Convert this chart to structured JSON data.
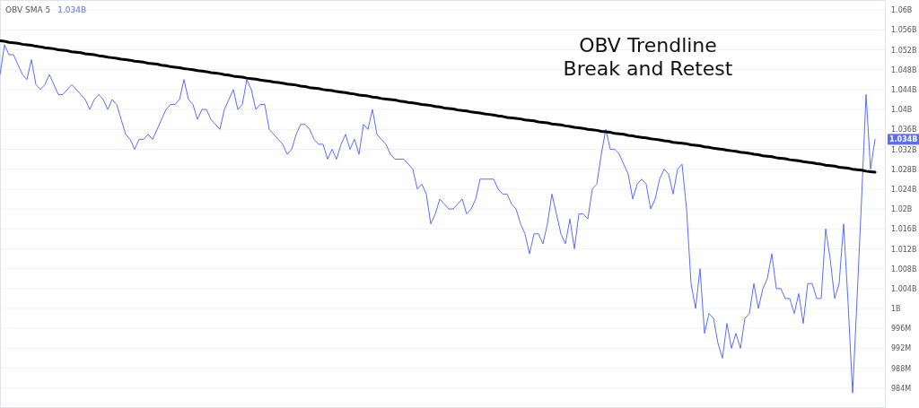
{
  "chart_data": {
    "type": "line",
    "title": "OBV Trendline Break and Retest",
    "categories": [
      null,
      null,
      null,
      null,
      null,
      null,
      null,
      null,
      null,
      null,
      null,
      null,
      null,
      null,
      null,
      null,
      null,
      null,
      null,
      null,
      null,
      null,
      null,
      null,
      null,
      null,
      null,
      null,
      null,
      null,
      null,
      null,
      null,
      null,
      null,
      null,
      null,
      null,
      null,
      null,
      null,
      null,
      null,
      null,
      null,
      null,
      null,
      null,
      null,
      null,
      null,
      null,
      null,
      null,
      null,
      null,
      null,
      null,
      null,
      null,
      null,
      null,
      null,
      null,
      null,
      null,
      null,
      null,
      null,
      null,
      null,
      null,
      null,
      null,
      null,
      null,
      null,
      null,
      null,
      null,
      null,
      null,
      null,
      null,
      null,
      null,
      null,
      null,
      null,
      null,
      null,
      null,
      null,
      null,
      null,
      null,
      null,
      null,
      null,
      null,
      null,
      null,
      null,
      null,
      null,
      null,
      null,
      null,
      null,
      null,
      null,
      null,
      null,
      null,
      null,
      null,
      null,
      null,
      null,
      null,
      null,
      null,
      null,
      null,
      null,
      null,
      null,
      null,
      null,
      null,
      null,
      null,
      null,
      null,
      null,
      null,
      null,
      null,
      null,
      null,
      null,
      null,
      null,
      null,
      null,
      null,
      null,
      null,
      null,
      null,
      null,
      null,
      null,
      null,
      null,
      null,
      null,
      null,
      null,
      null,
      null,
      null,
      null,
      null,
      null,
      null,
      null,
      null,
      null,
      null,
      null,
      null,
      null,
      null,
      null,
      null,
      null,
      null,
      null,
      null,
      null,
      null,
      null,
      null,
      null,
      null,
      null,
      null,
      null,
      null,
      null,
      null,
      null,
      null,
      null,
      null
    ],
    "series": [
      {
        "name": "OBV SMA 5",
        "color": "#5a6ef5",
        "values": [
          1047000000.0,
          1053000000.0,
          1051000000.0,
          1051000000.0,
          1049000000.0,
          1047000000.0,
          1046000000.0,
          1050000000.0,
          1045000000.0,
          1044000000.0,
          1045000000.0,
          1047000000.0,
          1045000000.0,
          1043000000.0,
          1043000000.0,
          1044000000.0,
          1045000000.0,
          1044000000.0,
          1043000000.0,
          1042000000.0,
          1040000000.0,
          1042000000.0,
          1043000000.0,
          1042000000.0,
          1040000000.0,
          1042000000.0,
          1041000000.0,
          1038000000.0,
          1035000000.0,
          1034000000.0,
          1032000000.0,
          1034000000.0,
          1034000000.0,
          1035000000.0,
          1034000000.0,
          1036000000.0,
          1038000000.0,
          1040000000.0,
          1041000000.0,
          1041000000.0,
          1042000000.0,
          1046000000.0,
          1042000000.0,
          1041000000.0,
          1038000000.0,
          1040000000.0,
          1040000000.0,
          1038000000.0,
          1037000000.0,
          1036000000.0,
          1040000000.0,
          1042000000.0,
          1044000000.0,
          1040000000.0,
          1041000000.0,
          1046000000.0,
          1044000000.0,
          1040000000.0,
          1041000000.0,
          1041000000.0,
          1036000000.0,
          1035000000.0,
          1034000000.0,
          1033000000.0,
          1031000000.0,
          1032000000.0,
          1035000000.0,
          1037000000.0,
          1037000000.0,
          1036000000.0,
          1034000000.0,
          1033000000.0,
          1033000000.0,
          1030000000.0,
          1032000000.0,
          1030000000.0,
          1033000000.0,
          1035000000.0,
          1032000000.0,
          1034000000.0,
          1031000000.0,
          1037000000.0,
          1036000000.0,
          1040000000.0,
          1035000000.0,
          1034000000.0,
          1033000000.0,
          1031000000.0,
          1030000000.0,
          1030000000.0,
          1030000000.0,
          1029000000.0,
          1028000000.0,
          1024000000.0,
          1025000000.0,
          1023000000.0,
          1017000000.0,
          1019000000.0,
          1022000000.0,
          1021000000.0,
          1020000000.0,
          1020000000.0,
          1021000000.0,
          1022000000.0,
          1019000000.0,
          1020000000.0,
          1022000000.0,
          1026000000.0,
          1026000000.0,
          1026000000.0,
          1026000000.0,
          1024000000.0,
          1023000000.0,
          1023000000.0,
          1021000000.0,
          1020000000.0,
          1017000000.0,
          1015000000.0,
          1011000000.0,
          1015000000.0,
          1015000000.0,
          1013000000.0,
          1017000000.0,
          1023000000.0,
          1019000000.0,
          1015000000.0,
          1013000000.0,
          1018000000.0,
          1012000000.0,
          1019000000.0,
          1019000000.0,
          1018000000.0,
          1024000000.0,
          1025000000.0,
          1031000000.0,
          1036000000.0,
          1032000000.0,
          1032000000.0,
          1031000000.0,
          1029000000.0,
          1027000000.0,
          1022000000.0,
          1025000000.0,
          1026000000.0,
          1025000000.0,
          1020000000.0,
          1022000000.0,
          1026000000.0,
          1028000000.0,
          1027000000.0,
          1023000000.0,
          1028000000.0,
          1029000000.0,
          1020000000.0,
          1005000000.0,
          1000000000.0,
          1008000000.0,
          995000000.0,
          999000000.0,
          998000000.0,
          993000000.0,
          990000000.0,
          997000000.0,
          992000000.0,
          995000000.0,
          992000000.0,
          998000000.0,
          999000000.0,
          1005000000.0,
          1000000000.0,
          1004000000.0,
          1006000000.0,
          1011000000.0,
          1004000000.0,
          1004000000.0,
          1002000000.0,
          1002000000.0,
          999000000.0,
          1003000000.0,
          997000000.0,
          1005000000.0,
          1005000000.0,
          1002000000.0,
          1002000000.0,
          1016000000.0,
          1010000000.0,
          1002000000.0,
          1005000000.0,
          1017000000.0,
          1001000000.0,
          983000000.0,
          1002000000.0,
          1022000000.0,
          1043000000.0,
          1028000000.0,
          1034000000.0
        ]
      },
      {
        "color": "#000000",
        "values": [
          1053800000.0,
          1053700000.0,
          1053500000.0,
          1053400000.0,
          1053300000.0,
          1053100000.0,
          1053000000.0,
          1052900000.0,
          1052700000.0,
          1052600000.0,
          1052400000.0,
          1052300000.0,
          1052200000.0,
          1052000000.0,
          1051900000.0,
          1051800000.0,
          1051600000.0,
          1051500000.0,
          1051400000.0,
          1051200000.0,
          1051100000.0,
          1051000000.0,
          1050800000.0,
          1050700000.0,
          1050500000.0,
          1050400000.0,
          1050300000.0,
          1050100000.0,
          1050000000.0,
          1049900000.0,
          1049700000.0,
          1049600000.0,
          1049500000.0,
          1049300000.0,
          1049200000.0,
          1049100000.0,
          1048900000.0,
          1048800000.0,
          1048600000.0,
          1048500000.0,
          1048400000.0,
          1048200000.0,
          1048100000.0,
          1048000000.0,
          1047800000.0,
          1047700000.0,
          1047600000.0,
          1047400000.0,
          1047300000.0,
          1047200000.0,
          1047000000.0,
          1046900000.0,
          1046700000.0,
          1046600000.0,
          1046500000.0,
          1046300000.0,
          1046200000.0,
          1046100000.0,
          1045900000.0,
          1045800000.0,
          1045700000.0,
          1045500000.0,
          1045400000.0,
          1045300000.0,
          1045100000.0,
          1045000000.0,
          1044900000.0,
          1044700000.0,
          1044600000.0,
          1044400000.0,
          1044300000.0,
          1044200000.0,
          1044000000.0,
          1043900000.0,
          1043800000.0,
          1043600000.0,
          1043500000.0,
          1043400000.0,
          1043200000.0,
          1043100000.0,
          1042900000.0,
          1042800000.0,
          1042700000.0,
          1042500000.0,
          1042400000.0,
          1042200000.0,
          1042100000.0,
          1042000000.0,
          1041900000.0,
          1041700000.0,
          1041600000.0,
          1041400000.0,
          1041300000.0,
          1041200000.0,
          1041000000.0,
          1040900000.0,
          1040800000.0,
          1040600000.0,
          1040500000.0,
          1040300000.0,
          1040200000.0,
          1040100000.0,
          1039900000.0,
          1039800000.0,
          1039700000.0,
          1039500000.0,
          1039400000.0,
          1039300000.0,
          1039100000.0,
          1039000000.0,
          1038900000.0,
          1038700000.0,
          1038600000.0,
          1038400000.0,
          1038300000.0,
          1038200000.0,
          1038100000.0,
          1037900000.0,
          1037800000.0,
          1037700000.0,
          1037500000.0,
          1037400000.0,
          1037300000.0,
          1037100000.0,
          1037000000.0,
          1036900000.0,
          1036700000.0,
          1036600000.0,
          1036400000.0,
          1036300000.0,
          1036200000.0,
          1036000000.0,
          1035900000.0,
          1035800000.0,
          1035600000.0,
          1035500000.0,
          1035400000.0,
          1035200000.0,
          1035100000.0,
          1035000000.0,
          1034800000.0,
          1034700000.0,
          1034500000.0,
          1034400000.0,
          1034300000.0,
          1034100000.0,
          1034000000.0,
          1033900000.0,
          1033700000.0,
          1033600000.0,
          1033400000.0,
          1033300000.0,
          1033200000.0,
          1033100000.0,
          1032900000.0,
          1032800000.0,
          1032700000.0,
          1032500000.0,
          1032400000.0,
          1032200000.0,
          1032100000.0,
          1032000000.0,
          1031800000.0,
          1031700000.0,
          1031600000.0,
          1031400000.0,
          1031300000.0,
          1031200000.0,
          1031000000.0,
          1030900000.0,
          1030700000.0,
          1030600000.0,
          1030500000.0,
          1030300000.0,
          1030200000.0,
          1030100000.0,
          1029900000.0,
          1029800000.0,
          1029700000.0,
          1029500000.0,
          1029400000.0,
          1029300000.0,
          1029100000.0,
          1029000000.0,
          1028800000.0,
          1028700000.0,
          1028600000.0,
          1028400000.0,
          1028300000.0,
          1028200000.0,
          1028000000.0,
          1027900000.0,
          1027800000.0,
          1027600000.0,
          1027500000.0,
          1027400000.0
        ]
      }
    ],
    "ylim": [
      980000000.0,
      1062000000.0
    ],
    "yticks": [
      {
        "value": 1060000000.0,
        "label": "1.06B"
      },
      {
        "value": 1056000000.0,
        "label": "1.056B"
      },
      {
        "value": 1052000000.0,
        "label": "1.052B"
      },
      {
        "value": 1048000000.0,
        "label": "1.048B"
      },
      {
        "value": 1044000000.0,
        "label": "1.044B"
      },
      {
        "value": 1040000000.0,
        "label": "1.04B"
      },
      {
        "value": 1036000000.0,
        "label": "1.036B"
      },
      {
        "value": 1032000000.0,
        "label": "1.032B"
      },
      {
        "value": 1028000000.0,
        "label": "1.028B"
      },
      {
        "value": 1024000000.0,
        "label": "1.024B"
      },
      {
        "value": 1020000000.0,
        "label": "1.02B"
      },
      {
        "value": 1016000000.0,
        "label": "1.016B"
      },
      {
        "value": 1012000000.0,
        "label": "1.012B"
      },
      {
        "value": 1008000000.0,
        "label": "1.008B"
      },
      {
        "value": 1004000000.0,
        "label": "1.004B"
      },
      {
        "value": 1000000000.0,
        "label": "1B"
      },
      {
        "value": 996000000.0,
        "label": "996M"
      },
      {
        "value": 992000000.0,
        "label": "992M"
      },
      {
        "value": 988000000.0,
        "label": "988M"
      },
      {
        "value": 984000000.0,
        "label": "984M"
      }
    ],
    "annotations": [
      "1.034B",
      {
        "text": "1.034B",
        "y": 1034000000.0
      }
    ],
    "grid": "y",
    "legend": "top left",
    "tick_labels": "y",
    "marker": "none",
    "line_style": "solid"
  }
}
